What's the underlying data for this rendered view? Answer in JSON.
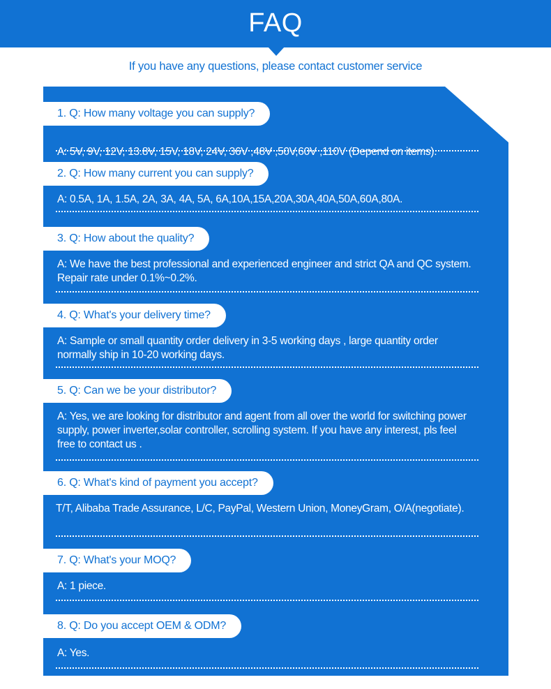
{
  "header": {
    "title": "FAQ"
  },
  "subtitle": "If you have any questions, please contact customer service",
  "colors": {
    "accent": "#1172d3",
    "text_light": "#ffffff"
  },
  "faq": [
    {
      "q": "1. Q: How many voltage you can supply?",
      "a": "A:  5V, 9V, 12V, 13.8V, 15V, 18V, 24V, 36V ,48V ,50V,60V ,110V (Depend on items)."
    },
    {
      "q": "2. Q: How many current you can supply?",
      "a": "A:  0.5A, 1A, 1.5A, 2A, 3A, 4A, 5A, 6A,10A,15A,20A,30A,40A,50A,60A,80A."
    },
    {
      "q": "3. Q: How about the quality?",
      "a": "A:  We have the best professional and experienced engineer and strict QA and QC system. Repair rate under 0.1%~0.2%."
    },
    {
      "q": "4. Q: What's your delivery time?",
      "a": "A:  Sample or small quantity order delivery in 3-5 working days , large quantity order normally ship in 10-20 working days."
    },
    {
      "q": "5. Q: Can we be your distributor?",
      "a": "A:  Yes, we are looking for distributor and agent from all over the world for switching power supply, power inverter,solar controller, scrolling system. If you have any interest, pls feel free to contact us ."
    },
    {
      "q": "6. Q: What's kind of payment you accept?",
      "a": "T/T, Alibaba Trade Assurance, L/C, PayPal, Western Union, MoneyGram, O/A(negotiate)."
    },
    {
      "q": "7. Q: What's your MOQ?",
      "a": "A:  1 piece."
    },
    {
      "q": "8. Q: Do you accept OEM & ODM?",
      "a": "A:  Yes."
    }
  ]
}
